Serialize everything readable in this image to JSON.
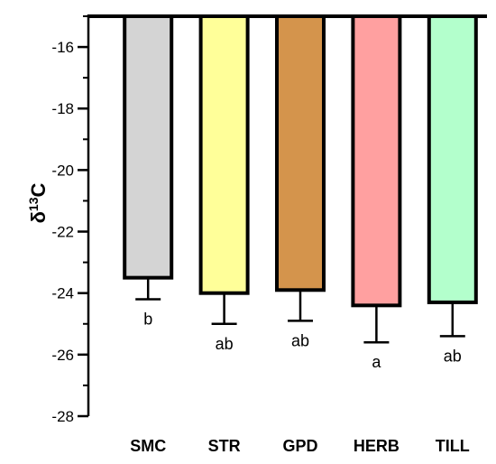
{
  "chart_data": {
    "type": "bar",
    "ylabel_main": "δ",
    "ylabel_sup": "13",
    "ylabel_suffix": "C",
    "xlabel": "",
    "title": "",
    "ylim": [
      -28,
      -15
    ],
    "yticks": [
      -16,
      -18,
      -20,
      -22,
      -24,
      -26,
      -28
    ],
    "categories": [
      "SMC",
      "STR",
      "GPD",
      "HERB",
      "TILL"
    ],
    "values": [
      -23.5,
      -24.0,
      -23.9,
      -24.4,
      -24.3
    ],
    "errors": [
      0.7,
      1.0,
      1.0,
      1.2,
      1.1
    ],
    "significance": [
      "b",
      "ab",
      "ab",
      "a",
      "ab"
    ],
    "colors": [
      "#d4d4d4",
      "#ffff99",
      "#d4944c",
      "#ffa0a0",
      "#b3ffcc"
    ],
    "grid": false
  }
}
